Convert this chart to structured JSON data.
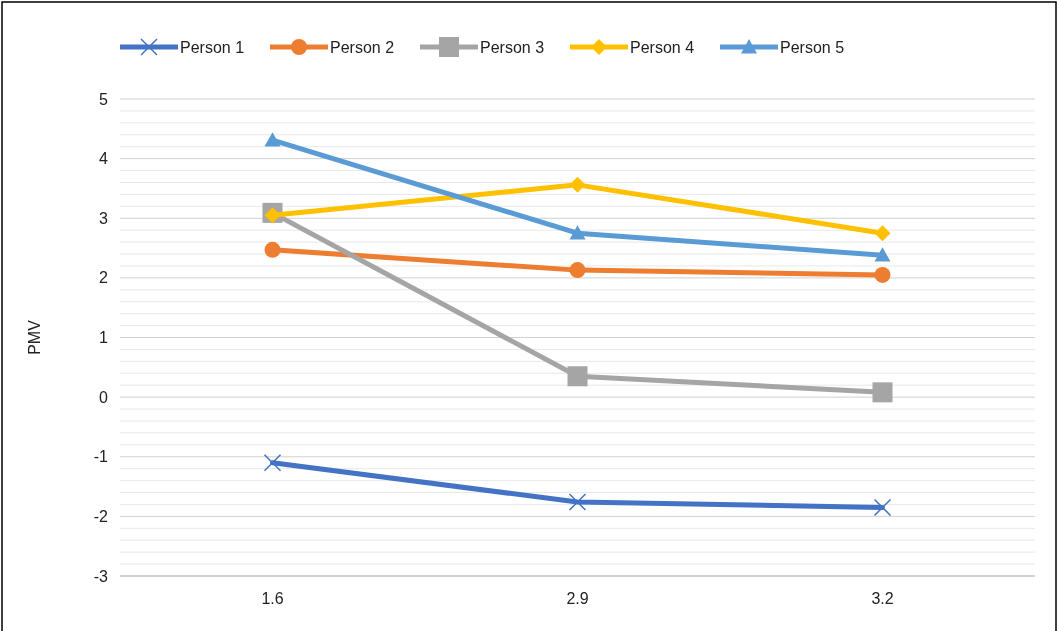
{
  "chart_data": {
    "type": "line",
    "ylabel": "PMV",
    "categories": [
      "1.6",
      "2.9",
      "3.2"
    ],
    "series": [
      {
        "name": "Person 1",
        "color": "#4472c4",
        "marker": "cross",
        "values": [
          -1.1,
          -1.76,
          -1.85
        ]
      },
      {
        "name": "Person 2",
        "color": "#ed7d31",
        "marker": "circle",
        "values": [
          2.47,
          2.13,
          2.05
        ]
      },
      {
        "name": "Person 3",
        "color": "#a5a5a5",
        "marker": "square",
        "values": [
          3.09,
          0.35,
          0.08
        ]
      },
      {
        "name": "Person 4",
        "color": "#ffc000",
        "marker": "diamond",
        "values": [
          3.05,
          3.56,
          2.75
        ]
      },
      {
        "name": "Person 5",
        "color": "#5b9bd5",
        "marker": "triangle",
        "values": [
          4.31,
          2.75,
          2.38
        ]
      }
    ],
    "ylim": [
      -3,
      5
    ],
    "yticks": [
      -3,
      {
        "value": -2.8,
        "label": null
      },
      {
        "value": -2.6,
        "label": null
      },
      {
        "value": -2.4,
        "label": null
      },
      {
        "value": -2.2,
        "label": null
      },
      -2,
      {
        "value": -1.8,
        "label": null
      },
      {
        "value": -1.6,
        "label": null
      },
      {
        "value": -1.4,
        "label": null
      },
      {
        "value": -1.2,
        "label": null
      },
      -1,
      {
        "value": -0.8,
        "label": null
      },
      {
        "value": -0.6,
        "label": null
      },
      {
        "value": -0.4,
        "label": null
      },
      {
        "value": -0.2,
        "label": null
      },
      0,
      {
        "value": 0.2,
        "label": null
      },
      {
        "value": 0.4,
        "label": null
      },
      {
        "value": 0.6,
        "label": null
      },
      {
        "value": 0.8,
        "label": null
      },
      1,
      {
        "value": 1.2,
        "label": null
      },
      {
        "value": 1.4,
        "label": null
      },
      {
        "value": 1.6,
        "label": null
      },
      {
        "value": 1.8,
        "label": null
      },
      2,
      {
        "value": 2.2,
        "label": null
      },
      {
        "value": 2.4,
        "label": null
      },
      {
        "value": 2.6,
        "label": null
      },
      {
        "value": 2.8,
        "label": null
      },
      3,
      {
        "value": 3.2,
        "label": null
      },
      {
        "value": 3.4,
        "label": null
      },
      {
        "value": 3.6,
        "label": null
      },
      {
        "value": 3.8,
        "label": null
      },
      4,
      {
        "value": 4.2,
        "label": null
      },
      {
        "value": 4.4,
        "label": null
      },
      {
        "value": 4.6,
        "label": null
      },
      {
        "value": 4.8,
        "label": null
      },
      5
    ],
    "grid": true,
    "legend": "top",
    "line_style": "solid"
  }
}
